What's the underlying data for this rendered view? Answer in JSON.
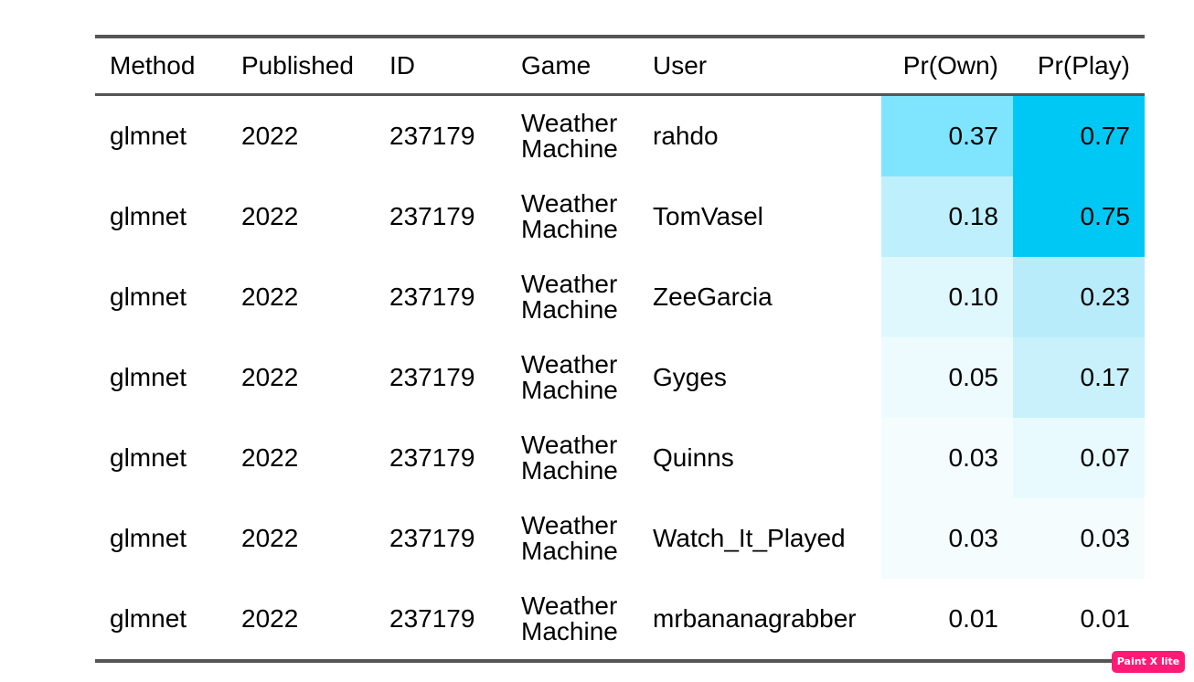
{
  "table": {
    "columns": [
      {
        "key": "method",
        "label": "Method"
      },
      {
        "key": "published",
        "label": "Published"
      },
      {
        "key": "id",
        "label": "ID"
      },
      {
        "key": "game",
        "label": "Game"
      },
      {
        "key": "user",
        "label": "User"
      },
      {
        "key": "pr_own",
        "label": "Pr(Own)"
      },
      {
        "key": "pr_play",
        "label": "Pr(Play)"
      }
    ],
    "rows": [
      {
        "method": "glmnet",
        "published": "2022",
        "id": "237179",
        "game_line1": "Weather",
        "game_line2": "Machine",
        "user": "rahdo",
        "pr_own": "0.37",
        "pr_play": "0.77",
        "pr_own_color": "#7fe5ff",
        "pr_play_color": "#00c8f5"
      },
      {
        "method": "glmnet",
        "published": "2022",
        "id": "237179",
        "game_line1": "Weather",
        "game_line2": "Machine",
        "user": "TomVasel",
        "pr_own": "0.18",
        "pr_play": "0.75",
        "pr_own_color": "#bdf0fc",
        "pr_play_color": "#00c8f5"
      },
      {
        "method": "glmnet",
        "published": "2022",
        "id": "237179",
        "game_line1": "Weather",
        "game_line2": "Machine",
        "user": "ZeeGarcia",
        "pr_own": "0.10",
        "pr_play": "0.23",
        "pr_own_color": "#dff8fd",
        "pr_play_color": "#b8ecfa"
      },
      {
        "method": "glmnet",
        "published": "2022",
        "id": "237179",
        "game_line1": "Weather",
        "game_line2": "Machine",
        "user": "Gyges",
        "pr_own": "0.05",
        "pr_play": "0.17",
        "pr_own_color": "#eefbfe",
        "pr_play_color": "#c9f1fb"
      },
      {
        "method": "glmnet",
        "published": "2022",
        "id": "237179",
        "game_line1": "Weather",
        "game_line2": "Machine",
        "user": "Quinns",
        "pr_own": "0.03",
        "pr_play": "0.07",
        "pr_own_color": "#f4fcfe",
        "pr_play_color": "#e8fafd"
      },
      {
        "method": "glmnet",
        "published": "2022",
        "id": "237179",
        "game_line1": "Weather",
        "game_line2": "Machine",
        "user": "Watch_It_Played",
        "pr_own": "0.03",
        "pr_play": "0.03",
        "pr_own_color": "#f4fcfe",
        "pr_play_color": "#f4fcfe"
      },
      {
        "method": "glmnet",
        "published": "2022",
        "id": "237179",
        "game_line1": "Weather",
        "game_line2": "Machine",
        "user": "mrbananagrabber",
        "pr_own": "0.01",
        "pr_play": "0.01",
        "pr_own_color": "#ffffff",
        "pr_play_color": "#ffffff"
      }
    ]
  },
  "watermark": {
    "label": "Paint X lite",
    "color": "#ff1a75"
  }
}
